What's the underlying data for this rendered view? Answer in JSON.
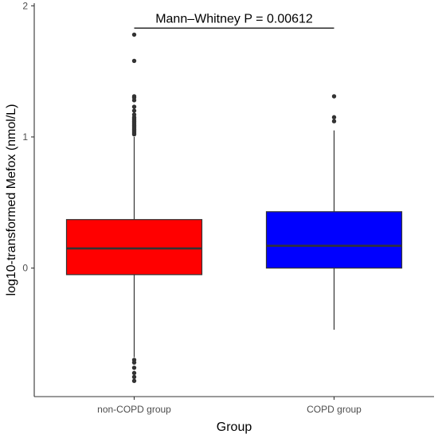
{
  "chart_data": {
    "type": "boxplot",
    "xlabel": "Group",
    "ylabel": "log10-transformed Mefox (nmol/L)",
    "categories": [
      "non-COPD group",
      "COPD group"
    ],
    "ylim": [
      -0.98,
      2.02
    ],
    "yticks": [
      0,
      1,
      2
    ],
    "ytick_labels": [
      "0",
      "1",
      "2"
    ],
    "grid": false,
    "legend": "none",
    "boxes": [
      {
        "group": "non-COPD group",
        "color": "#ff0000",
        "q1": -0.05,
        "median": 0.15,
        "q3": 0.37,
        "whisker_low": -0.68,
        "whisker_high": 1.0,
        "outliers": [
          1.02,
          1.03,
          1.04,
          1.05,
          1.06,
          1.07,
          1.08,
          1.09,
          1.1,
          1.11,
          1.12,
          1.13,
          1.14,
          1.15,
          1.17,
          1.2,
          1.23,
          1.28,
          1.3,
          1.31,
          1.58,
          1.78,
          -0.7,
          -0.72,
          -0.76,
          -0.8,
          -0.83,
          -0.86
        ]
      },
      {
        "group": "COPD group",
        "color": "#0000ff",
        "q1": 0.0,
        "median": 0.17,
        "q3": 0.43,
        "whisker_low": -0.47,
        "whisker_high": 1.05,
        "outliers": [
          1.12,
          1.15,
          1.31
        ]
      }
    ],
    "annotation": {
      "text": "Mann–Whitney P = 0.00612",
      "y": 1.83,
      "from": "non-COPD group",
      "to": "COPD group"
    },
    "colors": {
      "box_outline": "#333333",
      "axis": "#333333",
      "point": "#333333"
    }
  }
}
